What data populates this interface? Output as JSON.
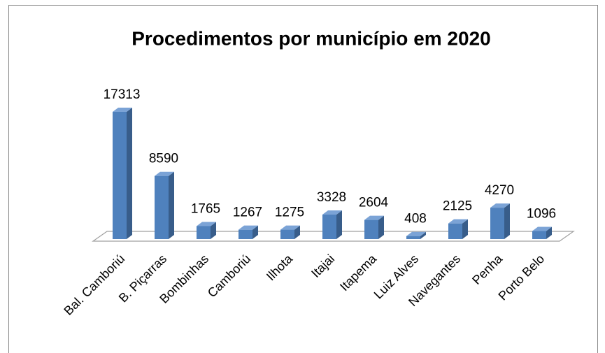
{
  "chart_data": {
    "type": "bar3d",
    "title": "Procedimentos por município em 2020",
    "categories": [
      "Bal. Camboriú",
      "B. Piçarras",
      "Bombinhas",
      "Camboriú",
      "Ilhota",
      "Itajai",
      "Itapema",
      "Luiz Alves",
      "Navegantes",
      "Penha",
      "Porto Belo"
    ],
    "values": [
      17313,
      8590,
      1765,
      1267,
      1275,
      3328,
      2604,
      408,
      2125,
      4270,
      1096
    ],
    "color": "#4f81bd"
  }
}
